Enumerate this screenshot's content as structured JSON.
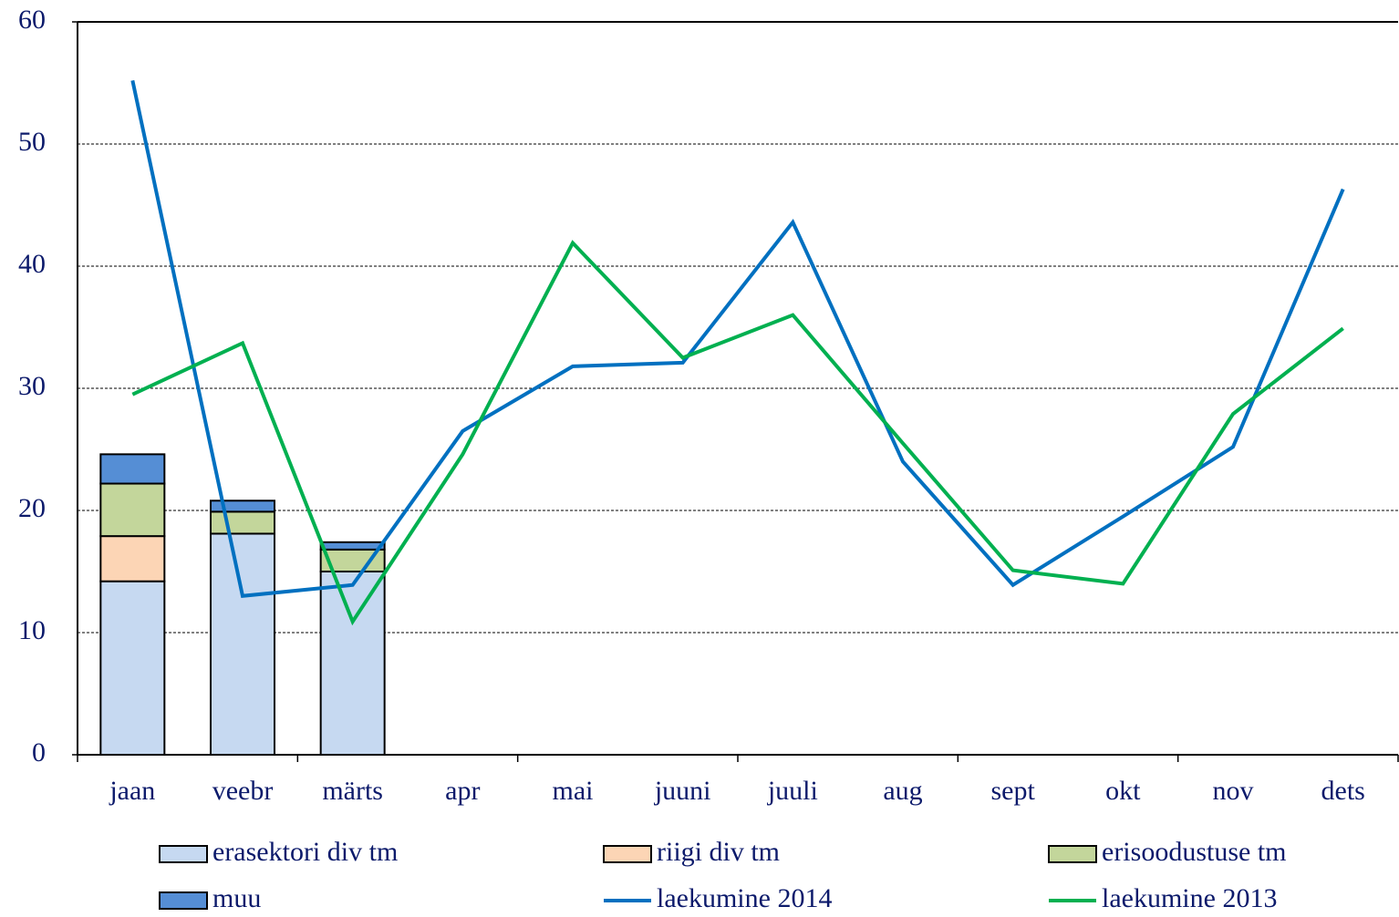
{
  "chart_data": {
    "type": "bar-line",
    "categories": [
      "jaan",
      "veebr",
      "märts",
      "apr",
      "mai",
      "juuni",
      "juuli",
      "aug",
      "sept",
      "okt",
      "nov",
      "dets"
    ],
    "ylim": [
      0,
      60
    ],
    "yticks": [
      0,
      10,
      20,
      30,
      40,
      50,
      60
    ],
    "grid": true,
    "bar_series": [
      {
        "name": "erasektori div tm",
        "color": "#c6d9f1",
        "values": [
          14.2,
          18.1,
          15.0,
          null,
          null,
          null,
          null,
          null,
          null,
          null,
          null,
          null
        ]
      },
      {
        "name": "riigi div tm",
        "color": "#fcd5b5",
        "values": [
          3.7,
          0,
          0,
          null,
          null,
          null,
          null,
          null,
          null,
          null,
          null,
          null
        ]
      },
      {
        "name": "erisoodustuse tm",
        "color": "#c3d69b",
        "values": [
          4.3,
          1.8,
          1.8,
          null,
          null,
          null,
          null,
          null,
          null,
          null,
          null,
          null
        ]
      },
      {
        "name": "muu",
        "color": "#558ed5",
        "values": [
          2.4,
          0.9,
          0.6,
          null,
          null,
          null,
          null,
          null,
          null,
          null,
          null,
          null
        ]
      }
    ],
    "line_series": [
      {
        "name": "laekumine 2014",
        "color": "#0070c0",
        "values": [
          55.2,
          13,
          13.9,
          26.5,
          31.8,
          32.1,
          43.6,
          24,
          13.9,
          19.5,
          25.2,
          46.3
        ]
      },
      {
        "name": "laekumine 2013",
        "color": "#00b050",
        "values": [
          29.5,
          33.7,
          10.9,
          24.6,
          41.9,
          32.5,
          36,
          25.5,
          15.1,
          14,
          27.9,
          34.9
        ]
      }
    ]
  }
}
